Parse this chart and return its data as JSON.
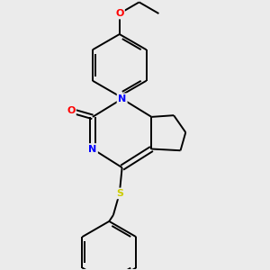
{
  "background_color": "#ebebeb",
  "bond_color": "#000000",
  "atom_colors": {
    "O": "#ff0000",
    "N": "#0000ff",
    "S": "#cccc00",
    "C": "#000000"
  },
  "figsize": [
    3.0,
    3.0
  ],
  "dpi": 100,
  "lw": 1.4,
  "fs": 8
}
